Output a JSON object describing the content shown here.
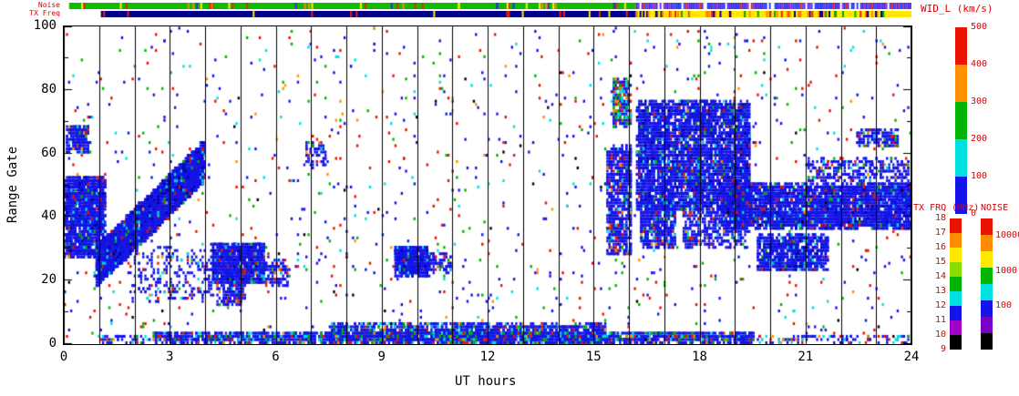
{
  "chart_data": {
    "type": "heatmap",
    "title": "",
    "xlabel": "UT hours",
    "ylabel": "Range Gate",
    "xlim": [
      0,
      24
    ],
    "ylim": [
      0,
      100
    ],
    "x_ticks_major": [
      0,
      3,
      6,
      9,
      12,
      15,
      18,
      21,
      24
    ],
    "x_ticks_minor_step": 1,
    "y_ticks_major": [
      0,
      20,
      40,
      60,
      80,
      100
    ],
    "y_ticks_minor_step": 10,
    "hour_gridlines": true,
    "seed": 77,
    "palette": {
      "blue": "#1414e8",
      "darkblue": "#0000a0",
      "cyan": "#00e0e0",
      "green": "#00b400",
      "orange": "#ff9100",
      "red": "#e81400",
      "black": "#000000"
    },
    "mixes": {
      "dense": [
        [
          "blue",
          0.84
        ],
        [
          "darkblue",
          0.08
        ],
        [
          "cyan",
          0.04
        ],
        [
          "green",
          0.02
        ],
        [
          "red",
          0.02
        ]
      ],
      "std": [
        [
          "blue",
          0.86
        ],
        [
          "cyan",
          0.04
        ],
        [
          "green",
          0.03
        ],
        [
          "red",
          0.05
        ],
        [
          "orange",
          0.02
        ]
      ],
      "bottom": [
        [
          "blue",
          0.72
        ],
        [
          "cyan",
          0.11
        ],
        [
          "green",
          0.08
        ],
        [
          "red",
          0.05
        ],
        [
          "orange",
          0.04
        ]
      ],
      "mixedtop": [
        [
          "blue",
          0.4
        ],
        [
          "cyan",
          0.2
        ],
        [
          "green",
          0.22
        ],
        [
          "red",
          0.1
        ],
        [
          "orange",
          0.08
        ]
      ],
      "speckle": [
        [
          "blue",
          0.4
        ],
        [
          "red",
          0.23
        ],
        [
          "green",
          0.15
        ],
        [
          "cyan",
          0.11
        ],
        [
          "orange",
          0.07
        ],
        [
          "black",
          0.04
        ]
      ]
    },
    "clusters": [
      {
        "type": "rect",
        "t": [
          0,
          1.15
        ],
        "g": [
          27,
          52
        ],
        "n": 1500,
        "mix": "dense"
      },
      {
        "type": "rect",
        "t": [
          0.05,
          0.7
        ],
        "g": [
          60,
          68
        ],
        "n": 200,
        "mix": "std"
      },
      {
        "type": "diag",
        "t": [
          0.9,
          3.95
        ],
        "gs": 24,
        "ge": 57,
        "w": 13,
        "n": 3400,
        "mix": "dense"
      },
      {
        "type": "rect",
        "t": [
          1.8,
          4.2
        ],
        "g": [
          13,
          30
        ],
        "n": 240,
        "mix": "std"
      },
      {
        "type": "rect",
        "t": [
          4.15,
          5.65
        ],
        "g": [
          19,
          31
        ],
        "n": 950,
        "mix": "dense"
      },
      {
        "type": "rect",
        "t": [
          4.3,
          5.1
        ],
        "g": [
          12,
          19
        ],
        "n": 150,
        "mix": "std"
      },
      {
        "type": "rect",
        "t": [
          5.6,
          6.35
        ],
        "g": [
          18,
          26
        ],
        "n": 120,
        "mix": "std"
      },
      {
        "type": "rect",
        "t": [
          6.8,
          7.4
        ],
        "g": [
          55,
          63
        ],
        "n": 70,
        "mix": "std"
      },
      {
        "type": "rect",
        "t": [
          9.35,
          10.3
        ],
        "g": [
          21,
          30
        ],
        "n": 600,
        "mix": "dense"
      },
      {
        "type": "rect",
        "t": [
          10.3,
          10.95
        ],
        "g": [
          22,
          28
        ],
        "n": 90,
        "mix": "std"
      },
      {
        "type": "rect",
        "t": [
          2.5,
          19.5
        ],
        "g": [
          0,
          3.5
        ],
        "n": 1800,
        "mix": "bottom"
      },
      {
        "type": "rect",
        "t": [
          7.5,
          15.3
        ],
        "g": [
          0,
          6
        ],
        "n": 1500,
        "mix": "bottom"
      },
      {
        "type": "rect",
        "t": [
          1,
          24
        ],
        "g": [
          0,
          2.5
        ],
        "n": 450,
        "mix": "bottom"
      },
      {
        "type": "rect",
        "t": [
          15.35,
          16.05
        ],
        "g": [
          28,
          62
        ],
        "n": 750,
        "mix": "std"
      },
      {
        "type": "rect",
        "t": [
          15.5,
          16.0
        ],
        "g": [
          68,
          83
        ],
        "n": 280,
        "mix": "mixedtop"
      },
      {
        "type": "rect",
        "t": [
          16.2,
          19.4
        ],
        "g": [
          42,
          76
        ],
        "n": 4200,
        "mix": "dense"
      },
      {
        "type": "rect",
        "t": [
          16.3,
          17.3
        ],
        "g": [
          30,
          44
        ],
        "n": 480,
        "mix": "std"
      },
      {
        "type": "rect",
        "t": [
          17.5,
          19.3
        ],
        "g": [
          30,
          42
        ],
        "n": 420,
        "mix": "std"
      },
      {
        "type": "rect",
        "t": [
          18.6,
          24
        ],
        "g": [
          36,
          50
        ],
        "n": 3400,
        "mix": "dense"
      },
      {
        "type": "rect",
        "t": [
          19.6,
          21.6
        ],
        "g": [
          23,
          34
        ],
        "n": 850,
        "mix": "dense"
      },
      {
        "type": "rect",
        "t": [
          21,
          23.9
        ],
        "g": [
          51,
          58
        ],
        "n": 320,
        "mix": "std"
      },
      {
        "type": "rect",
        "t": [
          22.4,
          23.6
        ],
        "g": [
          62,
          67
        ],
        "n": 160,
        "mix": "std"
      },
      {
        "type": "rect",
        "t": [
          0,
          24
        ],
        "g": [
          2,
          100
        ],
        "n": 1150,
        "mix": "speckle"
      },
      {
        "type": "rect",
        "t": [
          0,
          24
        ],
        "g": [
          0,
          2
        ],
        "n": 120,
        "mix": "speckle"
      }
    ],
    "strips": {
      "noise_label": "Noise",
      "txfreq_label": "TX Freq",
      "noise": [
        {
          "t": [
            0.15,
            16.2
          ],
          "base": "#11bb00",
          "fleck_n": 45,
          "fleck_colors": [
            "#ee2200",
            "#ff8800",
            "#2233ee",
            "#ffee00"
          ]
        },
        {
          "t": [
            16.2,
            24
          ],
          "cells": [
            "#5522dd",
            "#2233ee",
            "#3344ff",
            "#8833cc",
            "#ee2200",
            "#ffffff",
            "#5522dd",
            "#2233ee",
            "#8833cc"
          ]
        }
      ],
      "txfreq": [
        {
          "t": [
            1.05,
            16.2
          ],
          "base": "#000088",
          "fleck_n": 16,
          "fleck_colors": [
            "#ffee00",
            "#ee2200"
          ]
        },
        {
          "t": [
            16.2,
            24
          ],
          "base": "#ffe800",
          "fleck_n": 70,
          "fleck_colors": [
            "#ee2200",
            "#ff8800",
            "#00aa00",
            "#000088"
          ]
        }
      ]
    },
    "colorbars": {
      "wid": {
        "title": "WID_L (km/s)",
        "cells": [
          "#e81400",
          "#ff9100",
          "#00b400",
          "#00e0e0",
          "#1414e8"
        ],
        "ticks": [
          {
            "label": "500",
            "f": 0.0
          },
          {
            "label": "400",
            "f": 0.2
          },
          {
            "label": "300",
            "f": 0.4
          },
          {
            "label": "200",
            "f": 0.6
          },
          {
            "label": "100",
            "f": 0.8
          },
          {
            "label": "0",
            "f": 1.0
          }
        ]
      },
      "txfrq": {
        "title": "TX FRQ (MHz)",
        "cells": [
          "#e81400",
          "#ff8c00",
          "#ffe800",
          "#8cdc00",
          "#00b400",
          "#00e0e0",
          "#1414e8",
          "#a000c8",
          "#000000"
        ],
        "ticks": [
          {
            "label": "18",
            "f": 0.0
          },
          {
            "label": "17",
            "f": 0.111
          },
          {
            "label": "16",
            "f": 0.222
          },
          {
            "label": "15",
            "f": 0.333
          },
          {
            "label": "14",
            "f": 0.444
          },
          {
            "label": "13",
            "f": 0.556
          },
          {
            "label": "12",
            "f": 0.667
          },
          {
            "label": "11",
            "f": 0.778
          },
          {
            "label": "10",
            "f": 0.889
          },
          {
            "label": "9",
            "f": 1.0
          }
        ]
      },
      "noise": {
        "title": "NOISE",
        "cells": [
          "#e81400",
          "#ff8c00",
          "#ffe800",
          "#00b400",
          "#00e0e0",
          "#1414e8",
          "#7800c8",
          "#000000"
        ],
        "ticks": [
          {
            "label": "10000",
            "f": 0.13
          },
          {
            "label": "1000",
            "f": 0.4
          },
          {
            "label": "100",
            "f": 0.67
          }
        ]
      }
    }
  }
}
